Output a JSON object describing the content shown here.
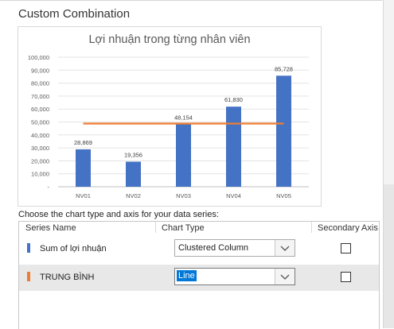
{
  "dialog": {
    "section_title": "Custom Combination",
    "instruction": "Choose the chart type and axis for your data series:"
  },
  "grid": {
    "columns": [
      "Series Name",
      "Chart Type",
      "Secondary Axis"
    ],
    "rows": [
      {
        "name": "Sum of lợi nhuận",
        "chart_type": "Clustered Column",
        "secondary_axis": false,
        "color": "#4472c4",
        "selected": false
      },
      {
        "name": "TRUNG BÌNH",
        "chart_type": "Line",
        "secondary_axis": false,
        "color": "#ed7d31",
        "selected": true
      }
    ]
  },
  "chart_data": {
    "type": "bar",
    "title": "Lợi nhuận  trong từng nhân viên",
    "categories": [
      "NV01",
      "NV02",
      "NV03",
      "NV04",
      "NV05"
    ],
    "series": [
      {
        "name": "Sum of lợi nhuận",
        "type": "bar",
        "color": "#4472c4",
        "values": [
          28869,
          19356,
          48154,
          61830,
          85728
        ]
      },
      {
        "name": "TRUNG BÌNH",
        "type": "line",
        "color": "#ed7d31",
        "values": [
          48787,
          48787,
          48787,
          48787,
          48787
        ]
      }
    ],
    "data_labels": [
      "28,869",
      "19,356",
      "48,154",
      "61,830",
      "85,728"
    ],
    "y_ticks": [
      "-",
      "10,000",
      "20,000",
      "30,000",
      "40,000",
      "50,000",
      "60,000",
      "70,000",
      "80,000",
      "90,000",
      "100,000"
    ],
    "ylim": [
      0,
      100000
    ],
    "grid": true,
    "legend": "none"
  },
  "icons": {
    "dropdown": "chevron-down-icon"
  }
}
